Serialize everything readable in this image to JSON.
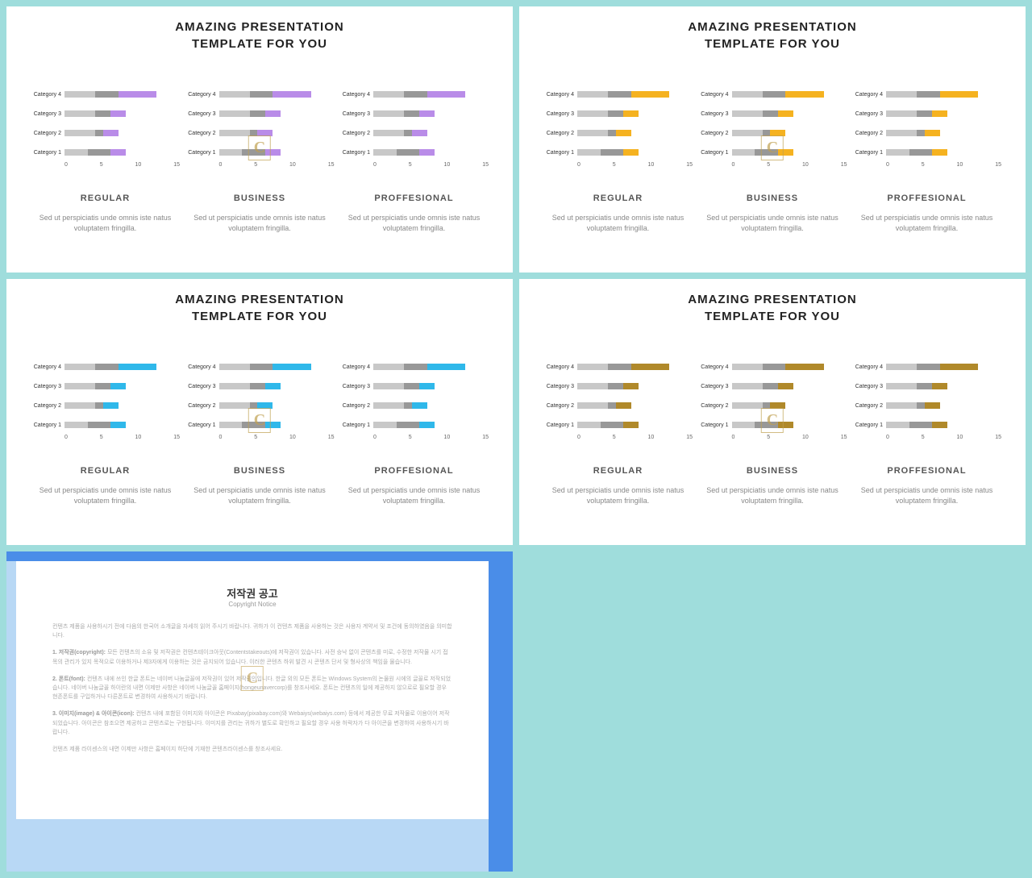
{
  "slides": [
    {
      "title_line1": "AMAZING PRESENTATION",
      "title_line2": "TEMPLATE FOR YOU",
      "accent": "#b98ce8",
      "seg_colors": [
        "#c8c8c8",
        "#989898",
        "#b98ce8"
      ],
      "charts": [
        {
          "subtitle": "REGULAR",
          "desc": "Sed ut perspiciatis unde omnis iste natus voluptatem fringilla."
        },
        {
          "subtitle": "BUSINESS",
          "desc": "Sed ut perspiciatis unde omnis iste natus voluptatem fringilla."
        },
        {
          "subtitle": "PROFFESIONAL",
          "desc": "Sed ut perspiciatis unde omnis iste natus voluptatem fringilla."
        }
      ],
      "watermark": true
    },
    {
      "title_line1": "AMAZING PRESENTATION",
      "title_line2": "TEMPLATE FOR YOU",
      "accent": "#f5b220",
      "seg_colors": [
        "#c8c8c8",
        "#989898",
        "#f5b220"
      ],
      "charts": [
        {
          "subtitle": "REGULAR",
          "desc": "Sed ut perspiciatis unde omnis iste natus voluptatem fringilla."
        },
        {
          "subtitle": "BUSINESS",
          "desc": "Sed ut perspiciatis unde omnis iste natus voluptatem fringilla."
        },
        {
          "subtitle": "PROFFESIONAL",
          "desc": "Sed ut perspiciatis unde omnis iste natus voluptatem fringilla."
        }
      ],
      "watermark": true
    },
    {
      "title_line1": "AMAZING PRESENTATION",
      "title_line2": "TEMPLATE FOR YOU",
      "accent": "#2fb8ea",
      "seg_colors": [
        "#c8c8c8",
        "#989898",
        "#2fb8ea"
      ],
      "charts": [
        {
          "subtitle": "REGULAR",
          "desc": "Sed ut perspiciatis unde omnis iste natus voluptatem fringilla."
        },
        {
          "subtitle": "BUSINESS",
          "desc": "Sed ut perspiciatis unde omnis iste natus voluptatem fringilla."
        },
        {
          "subtitle": "PROFFESIONAL",
          "desc": "Sed ut perspiciatis unde omnis iste natus voluptatem fringilla."
        }
      ],
      "watermark": true
    },
    {
      "title_line1": "AMAZING PRESENTATION",
      "title_line2": "TEMPLATE FOR YOU",
      "accent": "#b0892a",
      "seg_colors": [
        "#c8c8c8",
        "#989898",
        "#b0892a"
      ],
      "charts": [
        {
          "subtitle": "REGULAR",
          "desc": "Sed ut perspiciatis unde omnis iste natus voluptatem fringilla."
        },
        {
          "subtitle": "BUSINESS",
          "desc": "Sed ut perspiciatis unde omnis iste natus voluptatem fringilla."
        },
        {
          "subtitle": "PROFFESIONAL",
          "desc": "Sed ut perspiciatis unde omnis iste natus voluptatem fringilla."
        }
      ],
      "watermark": true
    }
  ],
  "chart_common": {
    "categories": [
      "Category 4",
      "Category 3",
      "Category 2",
      "Category 1"
    ],
    "xticks": [
      "0",
      "5",
      "10",
      "15"
    ],
    "xmax": 15,
    "rows": [
      {
        "label": "Category 4",
        "segs": [
          4,
          3,
          5
        ]
      },
      {
        "label": "Category 3",
        "segs": [
          4,
          2,
          2
        ]
      },
      {
        "label": "Category 2",
        "segs": [
          4,
          1,
          2
        ]
      },
      {
        "label": "Category 1",
        "segs": [
          3,
          3,
          2
        ]
      }
    ]
  },
  "copyright": {
    "title": "저작권 공고",
    "subtitle": "Copyright Notice",
    "paragraphs": [
      "컨텐츠 제품을 사용하시기 전에 다음의 한국어 소개글을 자세히 읽어 주시기 바랍니다. 귀하가 이 컨텐츠 제품을 사용하는 것은 사용자 계약서 및 조건에 동의하였음을 의미합니다.",
      "<b>1. 저작권(copyright):</b> 모든 컨텐츠의 소유 및 저작권은 컨텐츠테이크아웃(Contentstakeouts)에 저작권이 있습니다. 사전 승낙 없이 콘텐츠를 미로, 수정한 저작물 시기 접목의 관리가 있지 목적으로 이용하거나 제3자에게 이용하는 것은 금지되어 있습니다. 이러한 콘텐츠 하위 발견 시 콘텐츠 단서 및 형사상의 책임을 물습니다.",
      "<b>2. 폰트(font):</b> 컨텐츠 내에 쓰인 한글 폰트는 네이버 나눔글꼴에 저작권이 있어 저작권인입니다. 한글 외의 모든 폰트는 Windows System의 논물원 시에의 글꼴로 저작되었습니다. 네이버 나눔글꼴 하이란의 내면 이제만 사항은 네이버 나눔글꼴 홈페이지(hongeunavercorp)를 창조사세요. 폰트는 컨텐츠의 일에 제공하지 않으로로 필요할 경우 현존폰트를 구입하거나 다른폰트로 변경하여 사용하시기 바랍니다.",
      "<b>3. 이미지(image) & 아이콘(icon):</b> 컨텐츠 내에 포함된 이미지와 아이콘은 Pixabay(pixabay.com)와 Webaiys(webaiys.com) 등에서 제공한 무료 저작물로 이용이어 저작되었습니다. 아이콘은 참조으면 제공하고 콘텐츠로는 구현됩니다. 이미지를 관리는 귀하가 별도로 확인하고 필요할 경우 사용 허락자가 다 아이콘을 변경하여 사용하시기 바랍니다.",
      "컨텐츠 제품 라이센스의 내면 이제만 사항은 홈페이지 하단에 기재한 콘텐츠라이센스를 창조사세요."
    ]
  },
  "watermark_text": "C"
}
